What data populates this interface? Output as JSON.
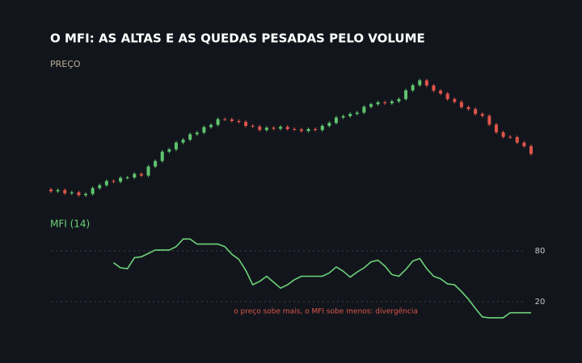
{
  "title": "O MFI: AS ALTAS E AS QUEDAS PESADAS PELO VOLUME",
  "chart_data": [
    {
      "type": "candlestick",
      "title": "PREÇO",
      "up_color": "#5fc46e",
      "down_color": "#e0554b",
      "ylim": [
        90,
        130
      ],
      "open": [
        93.8,
        93.2,
        93.6,
        92.6,
        92.9,
        92.0,
        92.4,
        94.2,
        95.1,
        96.4,
        96.2,
        97.4,
        97.5,
        98.6,
        98.1,
        100.9,
        102.6,
        105.5,
        106.2,
        108.3,
        109.2,
        110.9,
        111.4,
        113.1,
        113.8,
        115.6,
        115.5,
        115.0,
        114.7,
        113.5,
        113.3,
        112.2,
        112.9,
        112.6,
        113.2,
        112.5,
        112.4,
        111.9,
        112.5,
        112.2,
        113.5,
        114.4,
        116.1,
        116.5,
        117.2,
        117.6,
        119.4,
        120.2,
        120.8,
        120.5,
        121.1,
        121.8,
        124.5,
        126.1,
        127.6,
        126.0,
        124.4,
        123.5,
        121.8,
        120.9,
        119.3,
        118.7,
        117.2,
        116.6,
        113.9,
        111.5,
        110.1,
        110.0,
        108.3,
        107.2
      ],
      "high": [
        94.3,
        94.1,
        94.1,
        93.4,
        93.4,
        92.9,
        94.7,
        95.6,
        96.9,
        96.9,
        97.9,
        98.0,
        99.1,
        99.1,
        101.4,
        103.1,
        106.0,
        106.7,
        108.8,
        109.7,
        111.4,
        111.9,
        113.6,
        114.3,
        116.1,
        116.1,
        116.0,
        115.5,
        115.2,
        114.0,
        113.8,
        113.4,
        113.4,
        113.7,
        113.7,
        113.0,
        112.9,
        113.0,
        113.0,
        114.0,
        114.9,
        116.6,
        117.0,
        117.7,
        118.1,
        119.9,
        120.7,
        121.3,
        121.3,
        121.6,
        122.3,
        125.0,
        126.6,
        128.1,
        128.1,
        126.5,
        124.9,
        124.0,
        122.3,
        121.4,
        119.8,
        119.2,
        117.7,
        117.1,
        114.4,
        112.0,
        110.6,
        110.5,
        108.8,
        107.7
      ],
      "low": [
        92.7,
        92.7,
        92.1,
        92.1,
        91.5,
        91.5,
        91.9,
        93.7,
        94.6,
        95.7,
        95.7,
        96.9,
        97.0,
        97.6,
        97.6,
        100.4,
        102.1,
        105.0,
        105.7,
        107.8,
        108.7,
        110.4,
        110.9,
        112.6,
        113.3,
        115.0,
        114.5,
        114.2,
        113.0,
        112.8,
        111.7,
        111.7,
        112.1,
        112.1,
        112.0,
        111.9,
        111.4,
        111.4,
        111.7,
        111.7,
        113.0,
        113.9,
        115.6,
        116.0,
        116.7,
        117.1,
        118.9,
        119.7,
        120.0,
        120.0,
        120.6,
        121.3,
        124.0,
        125.6,
        125.5,
        123.9,
        123.0,
        121.3,
        120.4,
        118.8,
        118.2,
        116.7,
        116.1,
        113.4,
        111.0,
        109.6,
        109.5,
        107.8,
        106.7,
        104.3
      ],
      "close": [
        93.2,
        93.6,
        92.6,
        92.9,
        92.0,
        92.4,
        94.2,
        95.1,
        96.4,
        96.2,
        97.4,
        97.5,
        98.6,
        98.1,
        100.9,
        102.6,
        105.5,
        106.2,
        108.3,
        109.2,
        110.9,
        111.4,
        113.1,
        113.8,
        115.6,
        115.5,
        115.0,
        114.7,
        113.5,
        113.3,
        112.2,
        112.9,
        112.6,
        113.2,
        112.5,
        112.4,
        111.9,
        112.5,
        112.2,
        113.5,
        114.4,
        116.1,
        116.5,
        117.2,
        117.6,
        119.4,
        120.2,
        120.8,
        120.5,
        121.1,
        121.8,
        124.5,
        126.1,
        127.6,
        126.0,
        124.4,
        123.5,
        121.8,
        120.9,
        119.3,
        118.7,
        117.2,
        116.6,
        113.9,
        111.5,
        110.1,
        110.0,
        108.3,
        107.2,
        104.8
      ]
    },
    {
      "type": "line",
      "ylim": [
        0,
        100
      ],
      "yticks": [
        20,
        80
      ],
      "grid": true,
      "series": [
        {
          "name": "MFI (14)",
          "color": "#6fd27a",
          "values": [
            null,
            null,
            null,
            null,
            null,
            null,
            null,
            null,
            null,
            66,
            60,
            59,
            72,
            73,
            77,
            81,
            81,
            81,
            85,
            94,
            94,
            88,
            88,
            88,
            88,
            85,
            76,
            70,
            57,
            40,
            44,
            50,
            43,
            36,
            40,
            46,
            50,
            50,
            50,
            50,
            54,
            61,
            56,
            49,
            55,
            60,
            67,
            69,
            62,
            52,
            50,
            58,
            68,
            71,
            59,
            50,
            47,
            41,
            40,
            32,
            23,
            12,
            2,
            1,
            1,
            1,
            7,
            7,
            7,
            7
          ]
        }
      ],
      "annotation": "o preço sobe mais, o MFI sobe menos: divergência",
      "annotation_color": "#e0554b"
    }
  ]
}
